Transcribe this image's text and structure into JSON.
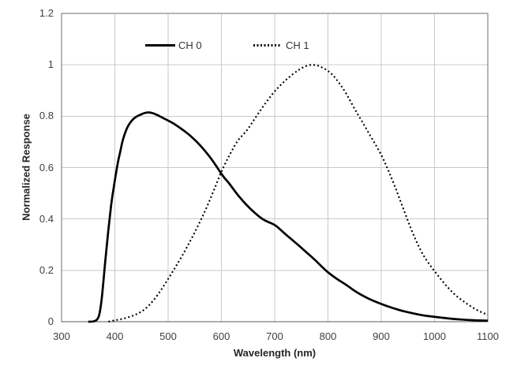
{
  "chart_data": {
    "type": "line",
    "title": "",
    "xlabel": "Wavelength (nm)",
    "ylabel": "Normalized Response",
    "xlim": [
      300,
      1100
    ],
    "ylim": [
      0,
      1.2
    ],
    "grid": true,
    "legend_position": "top-inside",
    "x_ticks": [
      {
        "v": 300,
        "label": "300"
      },
      {
        "v": 400,
        "label": "400"
      },
      {
        "v": 500,
        "label": "500"
      },
      {
        "v": 600,
        "label": "600"
      },
      {
        "v": 700,
        "label": "700"
      },
      {
        "v": 800,
        "label": "800"
      },
      {
        "v": 900,
        "label": "900"
      },
      {
        "v": 1000,
        "label": "1000"
      },
      {
        "v": 1100,
        "label": "1100"
      }
    ],
    "y_ticks": [
      {
        "v": 0,
        "label": "0"
      },
      {
        "v": 0.2,
        "label": "0.2"
      },
      {
        "v": 0.4,
        "label": "0.4"
      },
      {
        "v": 0.6,
        "label": "0.6"
      },
      {
        "v": 0.8,
        "label": "0.8"
      },
      {
        "v": 1,
        "label": "1"
      },
      {
        "v": 1.2,
        "label": "1.2"
      }
    ],
    "series": [
      {
        "name": "CH 0",
        "line": "solid",
        "color": "#000000",
        "points": [
          [
            350,
            0
          ],
          [
            358,
            0
          ],
          [
            363,
            0.003
          ],
          [
            367,
            0.008
          ],
          [
            370,
            0.02
          ],
          [
            373,
            0.05
          ],
          [
            376,
            0.1
          ],
          [
            379,
            0.165
          ],
          [
            382,
            0.235
          ],
          [
            385,
            0.3
          ],
          [
            388,
            0.36
          ],
          [
            391,
            0.415
          ],
          [
            394,
            0.47
          ],
          [
            398,
            0.525
          ],
          [
            402,
            0.575
          ],
          [
            406,
            0.625
          ],
          [
            410,
            0.66
          ],
          [
            414,
            0.7
          ],
          [
            418,
            0.728
          ],
          [
            423,
            0.755
          ],
          [
            428,
            0.773
          ],
          [
            434,
            0.788
          ],
          [
            440,
            0.798
          ],
          [
            447,
            0.805
          ],
          [
            454,
            0.811
          ],
          [
            461,
            0.815
          ],
          [
            468,
            0.814
          ],
          [
            475,
            0.809
          ],
          [
            482,
            0.802
          ],
          [
            490,
            0.793
          ],
          [
            500,
            0.783
          ],
          [
            510,
            0.772
          ],
          [
            520,
            0.758
          ],
          [
            530,
            0.743
          ],
          [
            540,
            0.727
          ],
          [
            550,
            0.708
          ],
          [
            560,
            0.687
          ],
          [
            570,
            0.663
          ],
          [
            580,
            0.637
          ],
          [
            590,
            0.607
          ],
          [
            598,
            0.582
          ],
          [
            606,
            0.558
          ],
          [
            614,
            0.54
          ],
          [
            622,
            0.517
          ],
          [
            632,
            0.49
          ],
          [
            642,
            0.466
          ],
          [
            652,
            0.444
          ],
          [
            664,
            0.421
          ],
          [
            676,
            0.4
          ],
          [
            688,
            0.388
          ],
          [
            700,
            0.378
          ],
          [
            712,
            0.356
          ],
          [
            724,
            0.334
          ],
          [
            737,
            0.311
          ],
          [
            750,
            0.288
          ],
          [
            763,
            0.264
          ],
          [
            776,
            0.24
          ],
          [
            788,
            0.215
          ],
          [
            800,
            0.192
          ],
          [
            812,
            0.173
          ],
          [
            824,
            0.157
          ],
          [
            834,
            0.144
          ],
          [
            845,
            0.127
          ],
          [
            857,
            0.111
          ],
          [
            869,
            0.097
          ],
          [
            881,
            0.085
          ],
          [
            894,
            0.074
          ],
          [
            908,
            0.063
          ],
          [
            922,
            0.053
          ],
          [
            936,
            0.044
          ],
          [
            950,
            0.037
          ],
          [
            965,
            0.03
          ],
          [
            980,
            0.024
          ],
          [
            1000,
            0.019
          ],
          [
            1020,
            0.014
          ],
          [
            1040,
            0.01
          ],
          [
            1060,
            0.007
          ],
          [
            1080,
            0.005
          ],
          [
            1100,
            0.004
          ]
        ]
      },
      {
        "name": "CH 1",
        "line": "dotted",
        "color": "#000000",
        "points": [
          [
            388,
            0
          ],
          [
            396,
            0.004
          ],
          [
            404,
            0.007
          ],
          [
            412,
            0.01
          ],
          [
            420,
            0.014
          ],
          [
            428,
            0.019
          ],
          [
            436,
            0.025
          ],
          [
            444,
            0.032
          ],
          [
            452,
            0.042
          ],
          [
            460,
            0.055
          ],
          [
            468,
            0.072
          ],
          [
            476,
            0.092
          ],
          [
            484,
            0.115
          ],
          [
            492,
            0.14
          ],
          [
            500,
            0.166
          ],
          [
            510,
            0.2
          ],
          [
            520,
            0.234
          ],
          [
            530,
            0.27
          ],
          [
            540,
            0.308
          ],
          [
            550,
            0.348
          ],
          [
            560,
            0.39
          ],
          [
            570,
            0.434
          ],
          [
            580,
            0.482
          ],
          [
            590,
            0.533
          ],
          [
            600,
            0.585
          ],
          [
            610,
            0.628
          ],
          [
            620,
            0.667
          ],
          [
            630,
            0.704
          ],
          [
            640,
            0.726
          ],
          [
            650,
            0.75
          ],
          [
            660,
            0.782
          ],
          [
            670,
            0.813
          ],
          [
            680,
            0.843
          ],
          [
            690,
            0.871
          ],
          [
            700,
            0.897
          ],
          [
            710,
            0.919
          ],
          [
            720,
            0.939
          ],
          [
            730,
            0.957
          ],
          [
            740,
            0.973
          ],
          [
            748,
            0.984
          ],
          [
            756,
            0.993
          ],
          [
            764,
            0.999
          ],
          [
            772,
            1.0
          ],
          [
            780,
            0.998
          ],
          [
            788,
            0.991
          ],
          [
            796,
            0.982
          ],
          [
            804,
            0.97
          ],
          [
            812,
            0.954
          ],
          [
            820,
            0.932
          ],
          [
            830,
            0.903
          ],
          [
            840,
            0.867
          ],
          [
            850,
            0.828
          ],
          [
            860,
            0.793
          ],
          [
            870,
            0.758
          ],
          [
            880,
            0.722
          ],
          [
            890,
            0.687
          ],
          [
            900,
            0.65
          ],
          [
            910,
            0.605
          ],
          [
            920,
            0.556
          ],
          [
            930,
            0.503
          ],
          [
            940,
            0.448
          ],
          [
            950,
            0.392
          ],
          [
            960,
            0.34
          ],
          [
            970,
            0.294
          ],
          [
            980,
            0.255
          ],
          [
            990,
            0.224
          ],
          [
            1000,
            0.197
          ],
          [
            1010,
            0.17
          ],
          [
            1020,
            0.145
          ],
          [
            1030,
            0.122
          ],
          [
            1040,
            0.102
          ],
          [
            1050,
            0.086
          ],
          [
            1060,
            0.071
          ],
          [
            1070,
            0.057
          ],
          [
            1080,
            0.045
          ],
          [
            1090,
            0.035
          ],
          [
            1100,
            0.027
          ]
        ]
      }
    ]
  },
  "colors": {
    "background": "#ffffff",
    "gridline": "#c9c9c9",
    "plot_border": "#6e6e6e",
    "axis_line": "#595959",
    "tick_text": "#404040",
    "title_text": "#262626",
    "curve": "#000000"
  }
}
